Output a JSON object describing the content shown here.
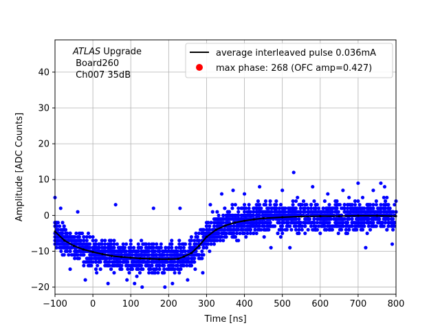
{
  "chart_data": {
    "type": "scatter",
    "xlabel": "Time [ns]",
    "ylabel": "Amplitude [ADC Counts]",
    "xlim": [
      -100,
      800
    ],
    "ylim": [
      -22,
      49
    ],
    "xticks": [
      -100,
      0,
      100,
      200,
      300,
      400,
      500,
      600,
      700,
      800
    ],
    "yticks": [
      -20,
      -10,
      0,
      10,
      20,
      30,
      40
    ],
    "grid": true,
    "legend_position": "top-right",
    "annotation": {
      "line1_italic": "ATLAS",
      "line1_rest": " Upgrade",
      "line2": " Board260",
      "line3": " Ch007 35dB"
    },
    "series": [
      {
        "name": "average interleaved pulse 0.036mA",
        "kind": "line",
        "color": "#000000",
        "x": [
          -100,
          -75,
          -50,
          -25,
          0,
          25,
          50,
          75,
          100,
          125,
          150,
          175,
          200,
          225,
          240,
          260,
          280,
          300,
          325,
          350,
          375,
          400,
          425,
          450,
          500,
          550,
          600,
          650,
          700,
          750,
          800
        ],
        "y": [
          -4.5,
          -7.0,
          -8.5,
          -9.5,
          -10.2,
          -10.8,
          -11.3,
          -11.6,
          -11.8,
          -12.0,
          -12.1,
          -12.2,
          -12.2,
          -12.1,
          -11.5,
          -10.5,
          -8.5,
          -6.0,
          -4.0,
          -2.8,
          -2.0,
          -1.5,
          -1.1,
          -0.8,
          -0.5,
          -0.3,
          -0.2,
          -0.2,
          -0.1,
          -0.1,
          -0.2
        ]
      },
      {
        "name": "max phase: 268 (OFC amp=0.427)",
        "kind": "marker",
        "color": "#ff0000",
        "x": [],
        "y": []
      },
      {
        "name": "",
        "kind": "scatter",
        "color": "#0000ff",
        "description_of_band": "dense sample cloud around average pulse",
        "x": [
          -100,
          800
        ],
        "y": [
          -4.5,
          -0.2
        ],
        "spread": 6,
        "outliers_x": [
          -100,
          -85,
          -60,
          -40,
          -20,
          10,
          40,
          60,
          90,
          110,
          130,
          160,
          190,
          210,
          230,
          250,
          270,
          290,
          310,
          340,
          370,
          400,
          440,
          470,
          500,
          540,
          580,
          620,
          660,
          700,
          740,
          770,
          790,
          520,
          530,
          720,
          760
        ],
        "outliers_y": [
          5,
          2,
          -15,
          1,
          -18,
          -16,
          -19,
          3,
          -18,
          -19,
          -20,
          2,
          -20,
          -19,
          2,
          -18,
          -15,
          -16,
          3,
          6,
          7,
          6,
          8,
          -9,
          7,
          5,
          8,
          6,
          7,
          9,
          7,
          8,
          -8,
          -9,
          12,
          -9,
          9
        ]
      }
    ]
  }
}
